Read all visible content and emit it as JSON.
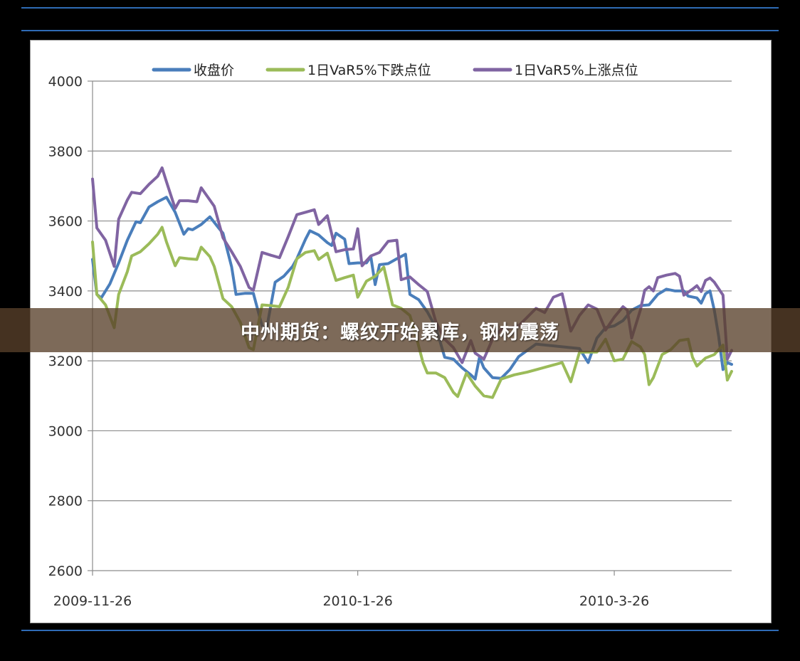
{
  "headline": "中州期货：螺纹开始累库，钢材震荡",
  "chart_data": {
    "type": "line",
    "title": "",
    "xlabel": "",
    "ylabel": "",
    "ylim": [
      2600,
      4000
    ],
    "yticks": [
      "4000",
      "3800",
      "3600",
      "3400",
      "3200",
      "3000",
      "2800",
      "2600"
    ],
    "x_tick_labels": [
      "2009-11-26",
      "2010-1-26",
      "2010-3-26"
    ],
    "x_tick_dates": [
      "2009-11-26",
      "2010-01-26",
      "2010-03-26"
    ],
    "x_range": [
      "2009-11-26",
      "2010-04-22"
    ],
    "grid": "horizontal",
    "legend_position": "top",
    "series": [
      {
        "name": "收盘价",
        "color": "#4a7ebb",
        "points": [
          [
            "2009-11-26",
            3490
          ],
          [
            "2009-11-27",
            3390
          ],
          [
            "2009-11-28",
            3380
          ],
          [
            "2009-11-30",
            3420
          ],
          [
            "2009-12-02",
            3480
          ],
          [
            "2009-12-04",
            3545
          ],
          [
            "2009-12-06",
            3598
          ],
          [
            "2009-12-07",
            3595
          ],
          [
            "2009-12-09",
            3640
          ],
          [
            "2009-12-11",
            3655
          ],
          [
            "2009-12-13",
            3668
          ],
          [
            "2009-12-15",
            3625
          ],
          [
            "2009-12-17",
            3562
          ],
          [
            "2009-12-18",
            3578
          ],
          [
            "2009-12-19",
            3575
          ],
          [
            "2009-12-21",
            3590
          ],
          [
            "2009-12-23",
            3612
          ],
          [
            "2009-12-25",
            3580
          ],
          [
            "2009-12-26",
            3565
          ],
          [
            "2009-12-28",
            3468
          ],
          [
            "2009-12-29",
            3390
          ],
          [
            "2009-12-31",
            3393
          ],
          [
            "2010-01-02",
            3393
          ],
          [
            "2010-01-04",
            3300
          ],
          [
            "2010-01-05",
            3290
          ],
          [
            "2010-01-07",
            3425
          ],
          [
            "2010-01-09",
            3442
          ],
          [
            "2010-01-11",
            3470
          ],
          [
            "2010-01-12",
            3492
          ],
          [
            "2010-01-14",
            3548
          ],
          [
            "2010-01-15",
            3572
          ],
          [
            "2010-01-17",
            3560
          ],
          [
            "2010-01-19",
            3538
          ],
          [
            "2010-01-20",
            3530
          ],
          [
            "2010-01-21",
            3565
          ],
          [
            "2010-01-23",
            3548
          ],
          [
            "2010-01-24",
            3478
          ],
          [
            "2010-01-26",
            3480
          ],
          [
            "2010-01-28",
            3480
          ],
          [
            "2010-01-29",
            3498
          ],
          [
            "2010-01-30",
            3418
          ],
          [
            "2010-01-31",
            3475
          ],
          [
            "2010-02-02",
            3478
          ],
          [
            "2010-02-04",
            3492
          ],
          [
            "2010-02-06",
            3505
          ],
          [
            "2010-02-07",
            3390
          ],
          [
            "2010-02-09",
            3375
          ],
          [
            "2010-02-11",
            3340
          ],
          [
            "2010-02-13",
            3295
          ],
          [
            "2010-02-15",
            3210
          ],
          [
            "2010-02-17",
            3205
          ],
          [
            "2010-02-19",
            3180
          ],
          [
            "2010-02-21",
            3160
          ],
          [
            "2010-02-22",
            3148
          ],
          [
            "2010-02-23",
            3210
          ],
          [
            "2010-02-24",
            3180
          ],
          [
            "2010-02-26",
            3152
          ],
          [
            "2010-02-28",
            3150
          ],
          [
            "2010-03-02",
            3175
          ],
          [
            "2010-03-04",
            3212
          ],
          [
            "2010-03-06",
            3230
          ],
          [
            "2010-03-08",
            3248
          ],
          [
            "2010-03-18",
            3235
          ],
          [
            "2010-03-20",
            3195
          ],
          [
            "2010-03-22",
            3265
          ],
          [
            "2010-03-24",
            3295
          ],
          [
            "2010-03-26",
            3300
          ],
          [
            "2010-03-28",
            3315
          ],
          [
            "2010-03-30",
            3345
          ],
          [
            "2010-04-01",
            3358
          ],
          [
            "2010-04-03",
            3360
          ],
          [
            "2010-04-05",
            3390
          ],
          [
            "2010-04-07",
            3405
          ],
          [
            "2010-04-09",
            3400
          ],
          [
            "2010-04-11",
            3400
          ],
          [
            "2010-04-12",
            3385
          ],
          [
            "2010-04-14",
            3380
          ],
          [
            "2010-04-15",
            3365
          ],
          [
            "2010-04-16",
            3392
          ],
          [
            "2010-04-17",
            3400
          ],
          [
            "2010-04-18",
            3345
          ],
          [
            "2010-04-19",
            3270
          ],
          [
            "2010-04-20",
            3175
          ],
          [
            "2010-04-21",
            3195
          ],
          [
            "2010-04-22",
            3190
          ]
        ]
      },
      {
        "name": "1日VaR5%下跌点位",
        "color": "#9bbb59",
        "points": [
          [
            "2009-11-26",
            3540
          ],
          [
            "2009-11-27",
            3390
          ],
          [
            "2009-11-29",
            3360
          ],
          [
            "2009-12-01",
            3295
          ],
          [
            "2009-12-02",
            3390
          ],
          [
            "2009-12-04",
            3455
          ],
          [
            "2009-12-05",
            3500
          ],
          [
            "2009-12-07",
            3512
          ],
          [
            "2009-12-09",
            3535
          ],
          [
            "2009-12-11",
            3562
          ],
          [
            "2009-12-12",
            3582
          ],
          [
            "2009-12-13",
            3540
          ],
          [
            "2009-12-15",
            3472
          ],
          [
            "2009-12-16",
            3495
          ],
          [
            "2009-12-18",
            3492
          ],
          [
            "2009-12-20",
            3490
          ],
          [
            "2009-12-21",
            3525
          ],
          [
            "2009-12-23",
            3498
          ],
          [
            "2009-12-24",
            3470
          ],
          [
            "2009-12-26",
            3378
          ],
          [
            "2009-12-28",
            3355
          ],
          [
            "2009-12-30",
            3310
          ],
          [
            "2010-01-01",
            3238
          ],
          [
            "2010-01-02",
            3232
          ],
          [
            "2010-01-04",
            3360
          ],
          [
            "2010-01-06",
            3358
          ],
          [
            "2010-01-08",
            3355
          ],
          [
            "2010-01-10",
            3410
          ],
          [
            "2010-01-12",
            3492
          ],
          [
            "2010-01-14",
            3510
          ],
          [
            "2010-01-16",
            3515
          ],
          [
            "2010-01-17",
            3490
          ],
          [
            "2010-01-19",
            3508
          ],
          [
            "2010-01-21",
            3430
          ],
          [
            "2010-01-23",
            3438
          ],
          [
            "2010-01-25",
            3445
          ],
          [
            "2010-01-26",
            3382
          ],
          [
            "2010-01-28",
            3428
          ],
          [
            "2010-01-30",
            3442
          ],
          [
            "2010-02-01",
            3468
          ],
          [
            "2010-02-03",
            3360
          ],
          [
            "2010-02-05",
            3350
          ],
          [
            "2010-02-07",
            3330
          ],
          [
            "2010-02-08",
            3290
          ],
          [
            "2010-02-10",
            3195
          ],
          [
            "2010-02-11",
            3165
          ],
          [
            "2010-02-13",
            3165
          ],
          [
            "2010-02-15",
            3152
          ],
          [
            "2010-02-17",
            3110
          ],
          [
            "2010-02-18",
            3098
          ],
          [
            "2010-02-20",
            3165
          ],
          [
            "2010-02-22",
            3128
          ],
          [
            "2010-02-24",
            3100
          ],
          [
            "2010-02-26",
            3095
          ],
          [
            "2010-02-28",
            3148
          ],
          [
            "2010-03-03",
            3160
          ],
          [
            "2010-03-06",
            3168
          ],
          [
            "2010-03-14",
            3195
          ],
          [
            "2010-03-16",
            3140
          ],
          [
            "2010-03-18",
            3225
          ],
          [
            "2010-03-20",
            3225
          ],
          [
            "2010-03-22",
            3225
          ],
          [
            "2010-03-24",
            3262
          ],
          [
            "2010-03-26",
            3200
          ],
          [
            "2010-03-28",
            3205
          ],
          [
            "2010-03-30",
            3255
          ],
          [
            "2010-04-01",
            3240
          ],
          [
            "2010-04-02",
            3218
          ],
          [
            "2010-04-03",
            3132
          ],
          [
            "2010-04-04",
            3152
          ],
          [
            "2010-04-06",
            3218
          ],
          [
            "2010-04-08",
            3232
          ],
          [
            "2010-04-10",
            3258
          ],
          [
            "2010-04-12",
            3262
          ],
          [
            "2010-04-13",
            3210
          ],
          [
            "2010-04-14",
            3185
          ],
          [
            "2010-04-16",
            3208
          ],
          [
            "2010-04-18",
            3218
          ],
          [
            "2010-04-20",
            3245
          ],
          [
            "2010-04-21",
            3145
          ],
          [
            "2010-04-22",
            3170
          ]
        ]
      },
      {
        "name": "1日VaR5%上涨点位",
        "color": "#8064a2",
        "points": [
          [
            "2009-11-26",
            3720
          ],
          [
            "2009-11-27",
            3580
          ],
          [
            "2009-11-29",
            3545
          ],
          [
            "2009-12-01",
            3470
          ],
          [
            "2009-12-02",
            3605
          ],
          [
            "2009-12-04",
            3660
          ],
          [
            "2009-12-05",
            3682
          ],
          [
            "2009-12-07",
            3678
          ],
          [
            "2009-12-09",
            3705
          ],
          [
            "2009-12-11",
            3728
          ],
          [
            "2009-12-12",
            3752
          ],
          [
            "2009-12-13",
            3712
          ],
          [
            "2009-12-15",
            3636
          ],
          [
            "2009-12-16",
            3658
          ],
          [
            "2009-12-18",
            3658
          ],
          [
            "2009-12-20",
            3655
          ],
          [
            "2009-12-21",
            3695
          ],
          [
            "2009-12-23",
            3660
          ],
          [
            "2009-12-24",
            3642
          ],
          [
            "2009-12-26",
            3552
          ],
          [
            "2009-12-28",
            3512
          ],
          [
            "2009-12-30",
            3470
          ],
          [
            "2010-01-01",
            3410
          ],
          [
            "2010-01-02",
            3402
          ],
          [
            "2010-01-04",
            3510
          ],
          [
            "2010-01-06",
            3502
          ],
          [
            "2010-01-08",
            3495
          ],
          [
            "2010-01-10",
            3555
          ],
          [
            "2010-01-12",
            3618
          ],
          [
            "2010-01-14",
            3625
          ],
          [
            "2010-01-16",
            3632
          ],
          [
            "2010-01-17",
            3590
          ],
          [
            "2010-01-19",
            3615
          ],
          [
            "2010-01-21",
            3512
          ],
          [
            "2010-01-23",
            3518
          ],
          [
            "2010-01-25",
            3520
          ],
          [
            "2010-01-26",
            3578
          ],
          [
            "2010-01-27",
            3472
          ],
          [
            "2010-01-29",
            3500
          ],
          [
            "2010-01-31",
            3510
          ],
          [
            "2010-02-02",
            3542
          ],
          [
            "2010-02-04",
            3545
          ],
          [
            "2010-02-05",
            3432
          ],
          [
            "2010-02-07",
            3440
          ],
          [
            "2010-02-09",
            3418
          ],
          [
            "2010-02-11",
            3398
          ],
          [
            "2010-02-13",
            3310
          ],
          [
            "2010-02-15",
            3262
          ],
          [
            "2010-02-17",
            3238
          ],
          [
            "2010-02-19",
            3195
          ],
          [
            "2010-02-21",
            3258
          ],
          [
            "2010-02-22",
            3222
          ],
          [
            "2010-02-24",
            3205
          ],
          [
            "2010-02-26",
            3262
          ],
          [
            "2010-02-28",
            3290
          ],
          [
            "2010-03-04",
            3300
          ],
          [
            "2010-03-08",
            3350
          ],
          [
            "2010-03-10",
            3338
          ],
          [
            "2010-03-12",
            3382
          ],
          [
            "2010-03-14",
            3392
          ],
          [
            "2010-03-16",
            3285
          ],
          [
            "2010-03-18",
            3330
          ],
          [
            "2010-03-20",
            3360
          ],
          [
            "2010-03-22",
            3348
          ],
          [
            "2010-03-24",
            3288
          ],
          [
            "2010-03-26",
            3325
          ],
          [
            "2010-03-28",
            3355
          ],
          [
            "2010-03-29",
            3345
          ],
          [
            "2010-03-30",
            3265
          ],
          [
            "2010-04-01",
            3345
          ],
          [
            "2010-04-02",
            3402
          ],
          [
            "2010-04-03",
            3412
          ],
          [
            "2010-04-04",
            3400
          ],
          [
            "2010-04-05",
            3438
          ],
          [
            "2010-04-07",
            3445
          ],
          [
            "2010-04-09",
            3450
          ],
          [
            "2010-04-10",
            3442
          ],
          [
            "2010-04-11",
            3388
          ],
          [
            "2010-04-13",
            3405
          ],
          [
            "2010-04-14",
            3415
          ],
          [
            "2010-04-15",
            3398
          ],
          [
            "2010-04-16",
            3430
          ],
          [
            "2010-04-17",
            3437
          ],
          [
            "2010-04-18",
            3425
          ],
          [
            "2010-04-20",
            3388
          ],
          [
            "2010-04-21",
            3205
          ],
          [
            "2010-04-22",
            3230
          ]
        ]
      }
    ]
  }
}
